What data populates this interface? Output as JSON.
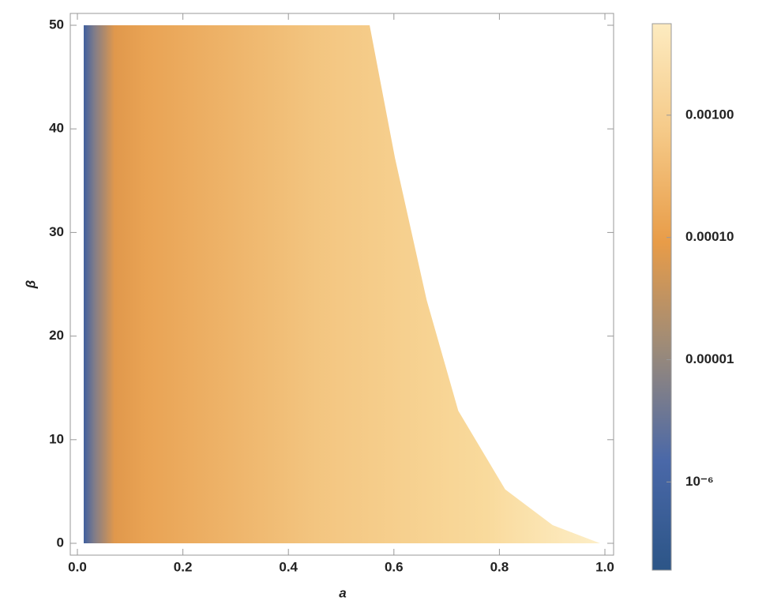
{
  "chart_data": {
    "type": "density",
    "xlabel": "a",
    "ylabel": "β",
    "xlim": [
      0,
      1.0
    ],
    "ylim": [
      0,
      50
    ],
    "xticks": [
      {
        "value": 0,
        "label": "0.0"
      },
      0.2,
      0.4,
      0.6,
      0.8,
      {
        "value": 1,
        "label": "1.0"
      }
    ],
    "yticks": [
      0,
      10,
      20,
      30,
      40,
      50
    ],
    "region": {
      "x": [
        0.012,
        0.012,
        0.554,
        0.602,
        0.662,
        0.722,
        0.811,
        0.901,
        0.991
      ],
      "y": [
        0,
        50,
        50,
        37.2,
        23.5,
        12.8,
        5.2,
        1.75,
        0
      ]
    },
    "colorbar": {
      "scale": "log",
      "lim": [
        1.9e-07,
        0.0056
      ],
      "ticks": [
        {
          "value": 0.001,
          "label": "0.00100"
        },
        {
          "value": 0.0001,
          "label": "0.00010"
        },
        {
          "value": 1e-05,
          "label": "0.00001"
        },
        {
          "value": 1e-06,
          "label": "10⁻⁶"
        }
      ],
      "colors": [
        "#2c5587",
        "#4a68a8",
        "#9a8a7a",
        "#e89c48",
        "#f5c987",
        "#fdebc0"
      ]
    }
  }
}
